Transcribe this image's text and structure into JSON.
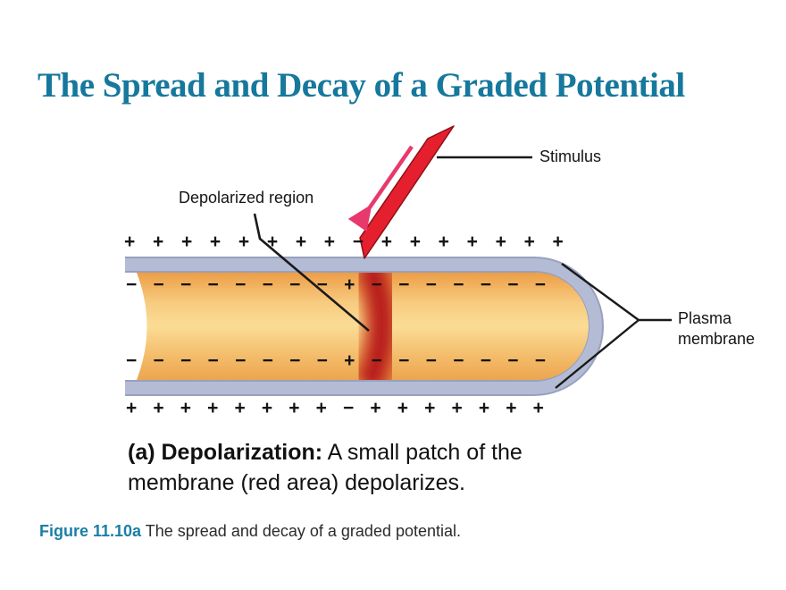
{
  "slide": {
    "title": "The Spread and Decay of a Graded Potential",
    "caption_heading": "(a) Depolarization:",
    "caption_text": "A small patch of the membrane (red area) depolarizes.",
    "figure_label": "Figure 11.10a",
    "figure_text": "The spread and decay of a graded potential."
  },
  "diagram": {
    "labels": {
      "stimulus": "Stimulus",
      "depolarized_region": "Depolarized region",
      "plasma_membrane": "Plasma membrane"
    },
    "charges": {
      "outside_top": [
        "+",
        "+",
        "+",
        "+",
        "+",
        "+",
        "+",
        "+",
        "−",
        "+",
        "+",
        "+",
        "+",
        "+",
        "+",
        "+"
      ],
      "inside_top": [
        "−",
        "−",
        "−",
        "−",
        "−",
        "−",
        "−",
        "−",
        "+",
        "−",
        "−",
        "−",
        "−",
        "−",
        "−",
        "−"
      ],
      "inside_bottom": [
        "−",
        "−",
        "−",
        "−",
        "−",
        "−",
        "−",
        "−",
        "+",
        "−",
        "−",
        "−",
        "−",
        "−",
        "−",
        "−"
      ],
      "outside_bottom": [
        "+",
        "+",
        "+",
        "+",
        "+",
        "+",
        "+",
        "+",
        "−",
        "+",
        "+",
        "+",
        "+",
        "+",
        "+",
        "+"
      ]
    }
  },
  "colors": {
    "title_teal": "#16789C",
    "figure_label_teal": "#1B7FA5",
    "membrane_fill": "#B4BBD4",
    "membrane_edge": "#98A1BD",
    "axon_light": "#FBDC95",
    "axon_dark": "#EEA14B",
    "depolarized_red": "#B7181C",
    "stimulus_red": "#E51F2E",
    "stimulus_arrow_pink": "#E8396D",
    "leader_line": "#1A1A1A"
  }
}
